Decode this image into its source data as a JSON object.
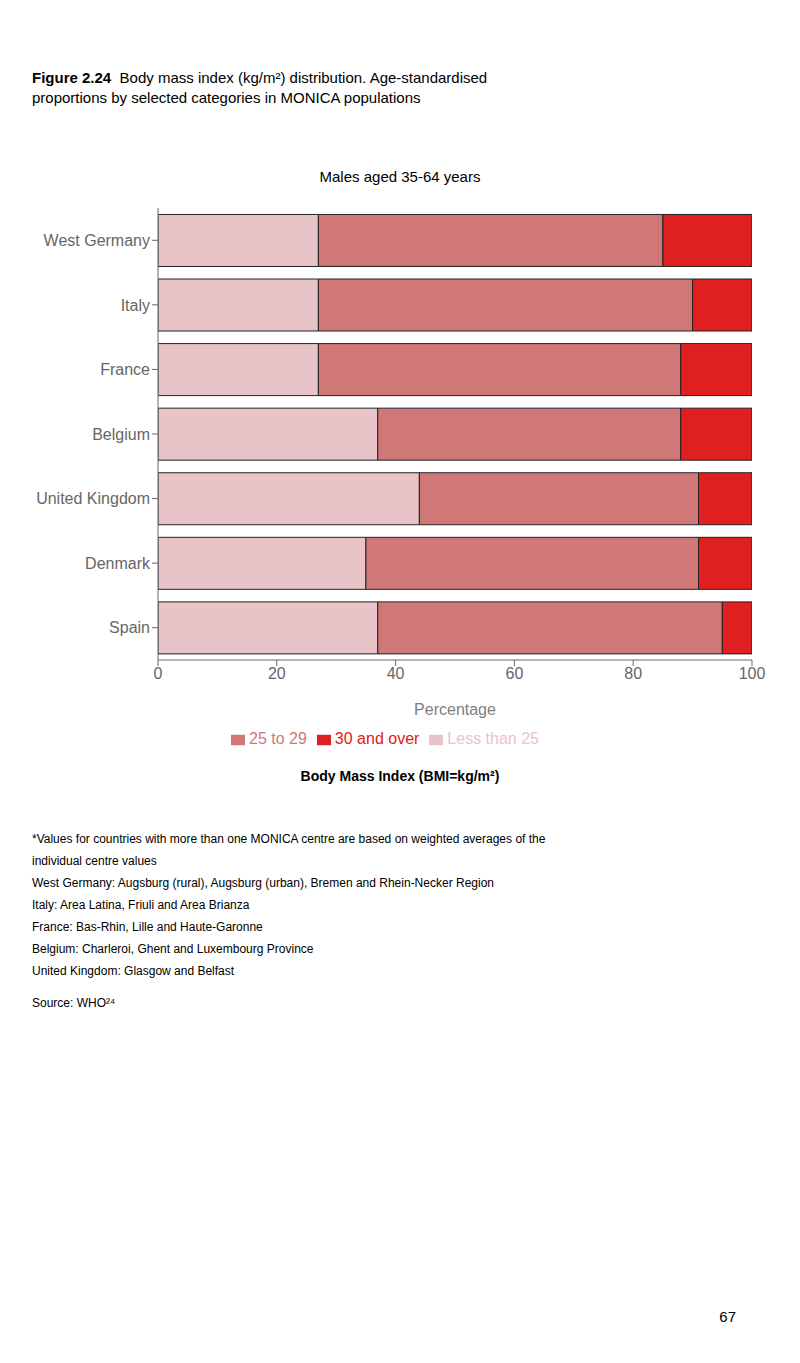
{
  "chart_data": {
    "type": "bar",
    "orientation": "horizontal",
    "stacked": true,
    "grid": false,
    "legend": "bottom",
    "title": "Figure 2.24  Body mass index (kg/m²) distribution. Age-standardised\nproportions by selected categories in MONICA populations",
    "subtitle": "Males aged 35-64 years",
    "categories": [
      "West Germany",
      "Italy",
      "France",
      "Belgium",
      "United Kingdom",
      "Denmark",
      "Spain"
    ],
    "series": [
      {
        "name": "Less than 25",
        "color": "#e8c4c8",
        "values": [
          27,
          27,
          27,
          37,
          44,
          35,
          37
        ]
      },
      {
        "name": "25 to 29",
        "color": "#d07878",
        "values": [
          58,
          63,
          61,
          51,
          47,
          56,
          58
        ]
      },
      {
        "name": "30 and over",
        "color": "#e02020",
        "values": [
          15,
          10,
          12,
          12,
          9,
          9,
          5
        ]
      }
    ],
    "x_label": "Percentage",
    "xlim": [
      0,
      100
    ],
    "xticks": [
      0,
      20,
      40,
      60,
      80,
      100
    ],
    "legend_title": "Body Mass Index (BMI=kg/m²)",
    "annotations": [
      "*Values for countries with more than one MONICA centre are based on weighted averages of the",
      "individual centre values",
      "West Germany: Augsburg (rural), Augsburg (urban), Bremen and Rhein-Necker Region",
      "Italy: Area Latina, Friuli and Area Brianza",
      "France: Bas-Rhin, Lille and Haute-Garonne",
      "Belgium: Charleroi, Ghent and Luxembourg Province",
      "United Kingdom: Glasgow and Belfast",
      "Source: WHO²⁴",
      "67"
    ]
  }
}
